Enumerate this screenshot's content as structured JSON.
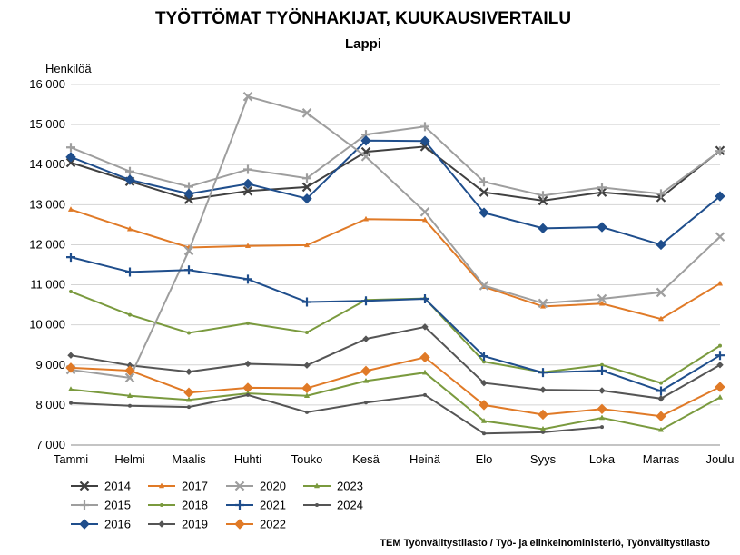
{
  "chart_data": {
    "type": "line",
    "title": "TYÖTTÖMAT TYÖNHAKIJAT, KUUKAUSIVERTAILU",
    "subtitle": "Lappi",
    "ylabel": "Henkilöä",
    "xlabel": "",
    "ylim": [
      7000,
      16000
    ],
    "yticks": [
      7000,
      8000,
      9000,
      10000,
      11000,
      12000,
      13000,
      14000,
      15000,
      16000
    ],
    "ytick_labels": [
      "7 000",
      "8 000",
      "9 000",
      "10 000",
      "11 000",
      "12 000",
      "13 000",
      "14 000",
      "15 000",
      "16 000"
    ],
    "categories": [
      "Tammi",
      "Helmi",
      "Maalis",
      "Huhti",
      "Touko",
      "Kesä",
      "Heinä",
      "Elo",
      "Syys",
      "Loka",
      "Marras",
      "Joulu"
    ],
    "grid": true,
    "legend_position": "bottom",
    "series": [
      {
        "name": "2014",
        "color": "#404040",
        "marker": "x",
        "dash": "",
        "values": [
          14050,
          13580,
          13130,
          13340,
          13440,
          14320,
          14450,
          13310,
          13100,
          13310,
          13180,
          14350
        ]
      },
      {
        "name": "2015",
        "color": "#9e9e9e",
        "marker": "plus",
        "dash": "",
        "values": [
          14430,
          13830,
          13450,
          13880,
          13660,
          14750,
          14950,
          13570,
          13230,
          13430,
          13270,
          14340
        ]
      },
      {
        "name": "2016",
        "color": "#1f4e8c",
        "marker": "diamond",
        "dash": "",
        "values": [
          14190,
          13620,
          13270,
          13520,
          13150,
          14600,
          14590,
          12800,
          12410,
          12440,
          12000,
          13210
        ]
      },
      {
        "name": "2017",
        "color": "#e07a27",
        "marker": "tri",
        "dash": "",
        "values": [
          12880,
          12390,
          11930,
          11970,
          11990,
          12640,
          12620,
          10950,
          10460,
          10530,
          10150,
          11030
        ]
      },
      {
        "name": "2018",
        "color": "#7a9a3e",
        "marker": "dot",
        "dash": "",
        "values": [
          10830,
          10250,
          9800,
          10040,
          9810,
          10620,
          10660,
          9080,
          8820,
          9000,
          8550,
          9480
        ]
      },
      {
        "name": "2019",
        "color": "#555555",
        "marker": "diamond-small",
        "dash": "",
        "values": [
          9240,
          8990,
          8830,
          9030,
          8990,
          9650,
          9950,
          8550,
          8380,
          8360,
          8160,
          9000
        ]
      },
      {
        "name": "2020",
        "color": "#9e9e9e",
        "marker": "x",
        "dash": "",
        "values": [
          8880,
          8680,
          11850,
          15700,
          15290,
          14200,
          12820,
          10980,
          10540,
          10650,
          10810,
          12200
        ]
      },
      {
        "name": "2021",
        "color": "#1f4e8c",
        "marker": "plus",
        "dash": "",
        "values": [
          11690,
          11320,
          11370,
          11140,
          10570,
          10600,
          10650,
          9220,
          8810,
          8860,
          8350,
          9240
        ]
      },
      {
        "name": "2022",
        "color": "#e07a27",
        "marker": "diamond",
        "dash": "",
        "values": [
          8930,
          8860,
          8310,
          8430,
          8420,
          8850,
          9190,
          8000,
          7760,
          7900,
          7720,
          8450
        ]
      },
      {
        "name": "2023",
        "color": "#7a9a3e",
        "marker": "tri",
        "dash": "",
        "values": [
          8390,
          8230,
          8130,
          8290,
          8230,
          8600,
          8810,
          7600,
          7400,
          7680,
          7380,
          8190
        ]
      },
      {
        "name": "2024",
        "color": "#555555",
        "marker": "dot",
        "dash": "",
        "values": [
          8050,
          7980,
          7950,
          8250,
          7820,
          8060,
          8250,
          7290,
          7320,
          7450,
          null,
          null
        ]
      }
    ],
    "source": "TEM Työnvälitystilasto / Työ- ja elinkeinoministeriö, Työnvälitystilasto"
  }
}
